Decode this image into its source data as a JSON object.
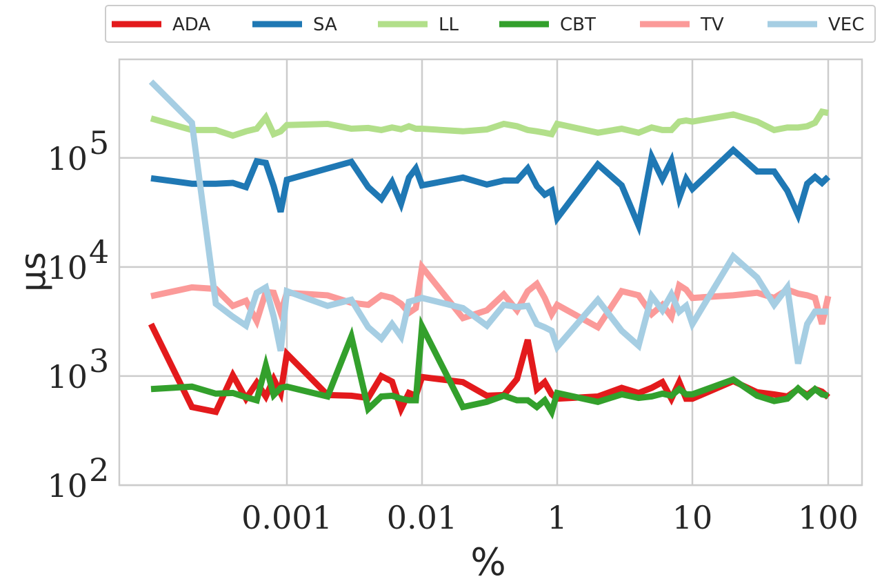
{
  "chart_data": {
    "type": "line",
    "xlabel": "%",
    "ylabel": "µs",
    "xscale": "log",
    "yscale": "log",
    "grid": true,
    "legend_position": "top",
    "ylim": [
      100,
      800000
    ],
    "x_ticks": [
      {
        "value": 0.001,
        "label": "0.001"
      },
      {
        "value": 0.01,
        "label": "0.01"
      },
      {
        "value": 1,
        "label": "1"
      },
      {
        "value": 10,
        "label": "10"
      },
      {
        "value": 100,
        "label": "100"
      }
    ],
    "y_ticks": [
      {
        "value": 100,
        "base": "10",
        "exp": "2"
      },
      {
        "value": 1000,
        "base": "10",
        "exp": "3"
      },
      {
        "value": 10000,
        "base": "10",
        "exp": "4"
      },
      {
        "value": 100000,
        "base": "10",
        "exp": "5"
      }
    ],
    "x": [
      0.0001,
      0.0002,
      0.0003,
      0.0004,
      0.0005,
      0.0006,
      0.0007,
      0.0008,
      0.0009,
      0.001,
      0.002,
      0.003,
      0.004,
      0.005,
      0.006,
      0.007,
      0.008,
      0.009,
      0.01,
      0.02,
      0.03,
      0.04,
      0.05,
      0.06,
      0.07,
      0.08,
      0.09,
      1,
      2,
      3,
      4,
      5,
      6,
      7,
      8,
      9,
      10,
      20,
      30,
      40,
      50,
      60,
      70,
      80,
      90,
      100
    ],
    "series": [
      {
        "name": "ADA",
        "color": "#e31a1c",
        "values": [
          3000,
          520,
          470,
          1020,
          620,
          870,
          650,
          940,
          700,
          1600,
          670,
          660,
          630,
          1000,
          890,
          500,
          700,
          660,
          980,
          880,
          660,
          670,
          940,
          2150,
          760,
          880,
          680,
          620,
          650,
          780,
          700,
          780,
          880,
          620,
          880,
          620,
          620,
          900,
          710,
          680,
          650,
          760,
          670,
          760,
          720,
          640
        ]
      },
      {
        "name": "SA",
        "color": "#1f78b4",
        "values": [
          65000,
          58000,
          58000,
          59000,
          54000,
          93000,
          90000,
          55000,
          32000,
          63000,
          80000,
          92000,
          54000,
          42000,
          60000,
          38000,
          66000,
          80000,
          56000,
          66000,
          57000,
          62000,
          62000,
          80000,
          55000,
          46000,
          50000,
          28000,
          87000,
          56000,
          24000,
          102000,
          64000,
          94000,
          43000,
          64000,
          52000,
          118000,
          75000,
          75000,
          50000,
          30000,
          58000,
          67000,
          59000,
          67000
        ]
      },
      {
        "name": "LL",
        "color": "#b2df8a",
        "values": [
          230000,
          180000,
          180000,
          160000,
          175000,
          185000,
          235000,
          165000,
          175000,
          200000,
          205000,
          185000,
          188000,
          180000,
          190000,
          183000,
          195000,
          185000,
          185000,
          175000,
          182000,
          205000,
          195000,
          180000,
          175000,
          170000,
          165000,
          205000,
          170000,
          185000,
          170000,
          190000,
          180000,
          180000,
          215000,
          220000,
          215000,
          250000,
          215000,
          180000,
          190000,
          190000,
          195000,
          210000,
          265000,
          258000
        ]
      },
      {
        "name": "CBT",
        "color": "#33a02c",
        "values": [
          760,
          800,
          690,
          700,
          640,
          600,
          1250,
          670,
          780,
          800,
          650,
          2300,
          500,
          650,
          660,
          620,
          600,
          600,
          2850,
          520,
          580,
          660,
          600,
          600,
          520,
          600,
          470,
          700,
          580,
          680,
          630,
          650,
          690,
          660,
          760,
          680,
          680,
          930,
          660,
          590,
          620,
          770,
          650,
          760,
          680,
          660
        ]
      },
      {
        "name": "TV",
        "color": "#fb9a99",
        "values": [
          5400,
          6500,
          6300,
          4400,
          4900,
          3200,
          5900,
          5800,
          3800,
          5800,
          5500,
          4700,
          4500,
          5500,
          5200,
          4600,
          3800,
          4200,
          10000,
          3400,
          4000,
          5600,
          4000,
          6000,
          7000,
          5200,
          3700,
          4500,
          2800,
          6000,
          5500,
          3700,
          4500,
          3500,
          6800,
          6200,
          5200,
          5500,
          5800,
          5200,
          6200,
          5700,
          5500,
          5200,
          3000,
          5400
        ]
      },
      {
        "name": "VEC",
        "color": "#a6cee3",
        "values": [
          500000,
          210000,
          4600,
          3500,
          2900,
          5800,
          6500,
          3500,
          1700,
          6000,
          4400,
          5000,
          2800,
          2200,
          3000,
          2300,
          4800,
          5000,
          5200,
          4200,
          2900,
          4500,
          4300,
          4400,
          3000,
          2800,
          2600,
          1850,
          5000,
          2600,
          1900,
          5400,
          4000,
          5600,
          3900,
          4400,
          3000,
          12500,
          8000,
          4500,
          6500,
          1300,
          3000,
          3900,
          3900,
          3900
        ]
      }
    ]
  }
}
